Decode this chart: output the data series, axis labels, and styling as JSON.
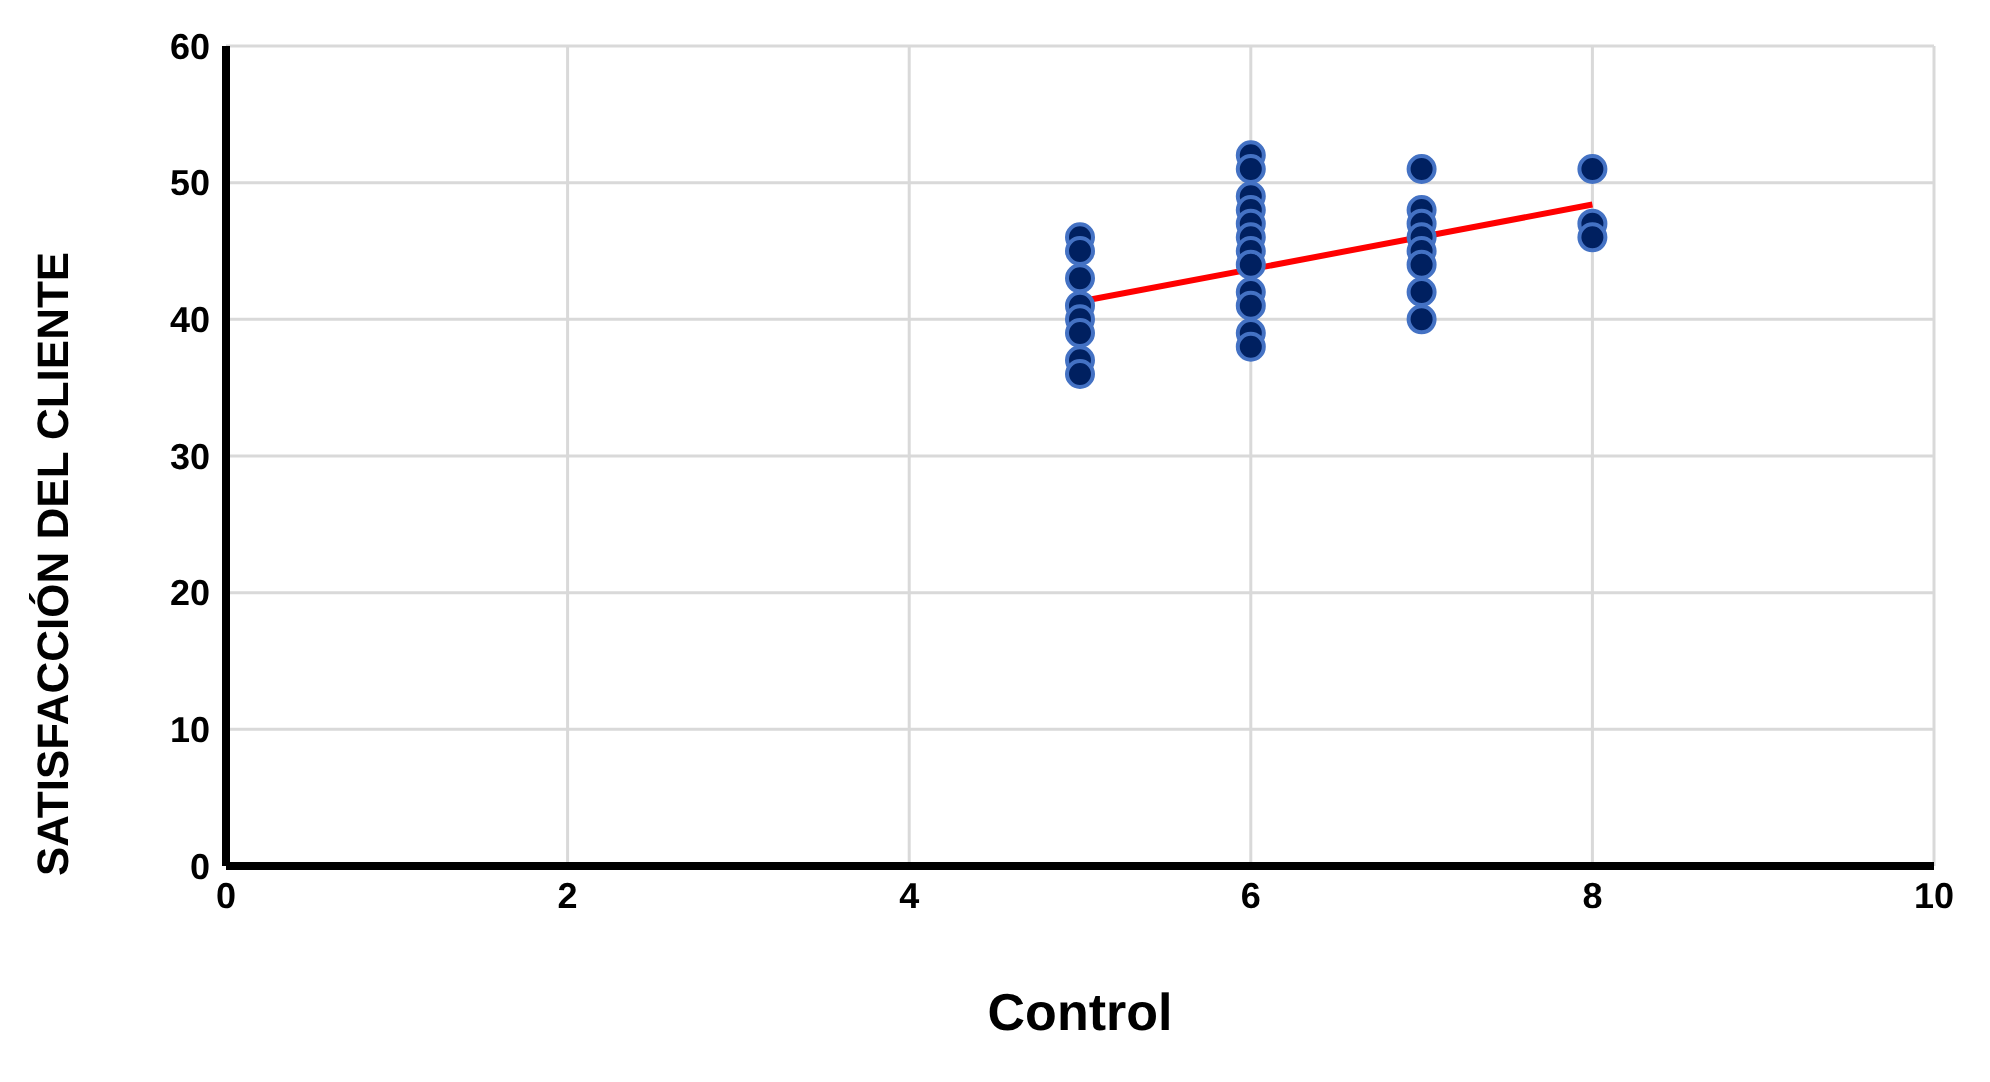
{
  "chart_data": {
    "type": "scatter",
    "xlabel": "Control",
    "ylabel": "SATISFACCIÓN DEL CLIENTE",
    "xlim": [
      0,
      10
    ],
    "xticks": [
      0,
      2,
      4,
      6,
      8,
      10
    ],
    "ylim": [
      0,
      60
    ],
    "yticks": [
      0,
      10,
      20,
      30,
      40,
      50,
      60
    ],
    "grid": true,
    "series": [
      {
        "marker": "circle",
        "color": "#002060",
        "x": [
          5,
          5,
          5,
          5,
          5,
          5,
          5,
          5,
          6,
          6,
          6,
          6,
          6,
          6,
          6,
          6,
          6,
          6,
          6,
          6,
          7,
          7,
          7,
          7,
          7,
          7,
          7,
          7,
          8,
          8,
          8
        ],
        "values": [
          46,
          45,
          43,
          41,
          40,
          39,
          37,
          36,
          52,
          51,
          49,
          48,
          47,
          46,
          45,
          44,
          42,
          41,
          39,
          38,
          51,
          48,
          47,
          46,
          45,
          44,
          42,
          40,
          51,
          47,
          46
        ]
      },
      {
        "type": "line",
        "color": "#ff0000",
        "x": [
          5,
          8
        ],
        "values": [
          41.3,
          48.4
        ]
      }
    ]
  }
}
